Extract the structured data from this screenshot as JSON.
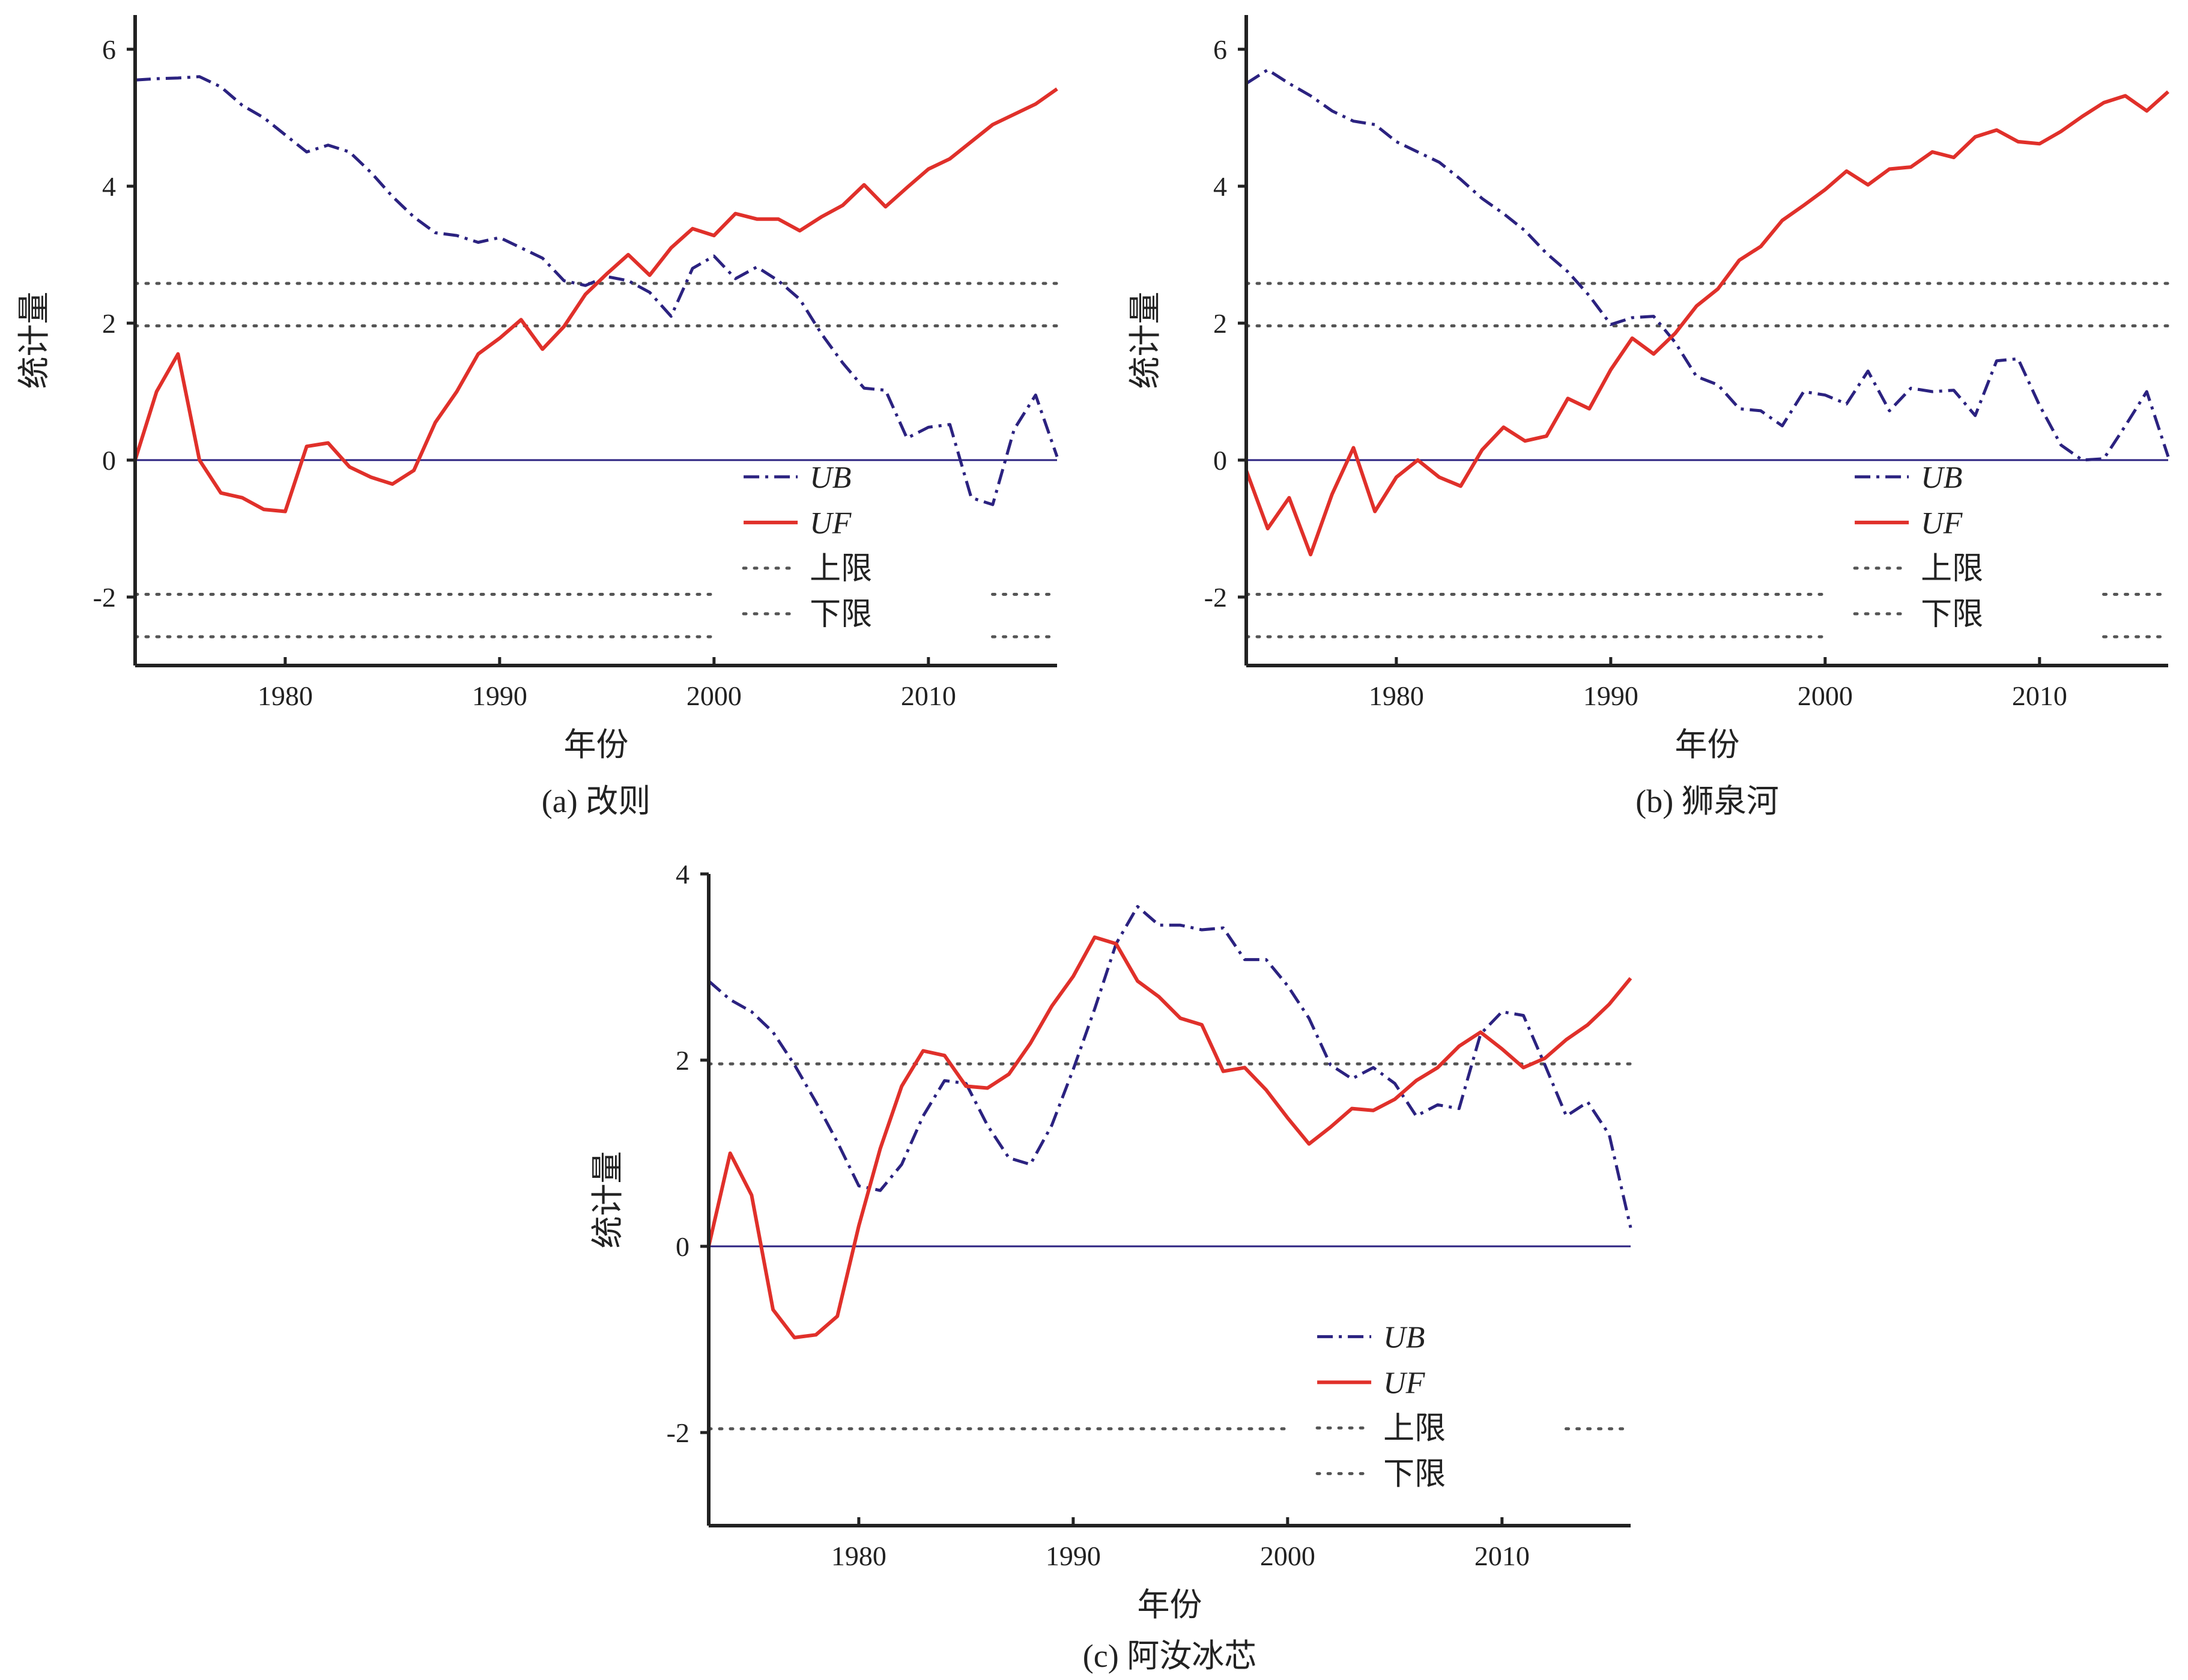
{
  "figure": {
    "colors": {
      "UB": "#2b2280",
      "UF": "#e0302a",
      "limit": "#555555",
      "zero": "#2b2280",
      "axis": "#222222"
    },
    "legend_labels": [
      "UB",
      "UF",
      "上限",
      "下限"
    ]
  },
  "chart_data": [
    {
      "type": "line",
      "caption": "(a) 改则",
      "xlabel": "年份",
      "ylabel": "统计量",
      "xlim": [
        1973,
        2016
      ],
      "ylim": [
        -3,
        6.5
      ],
      "xticks": [
        1980,
        1990,
        2000,
        2010
      ],
      "yticks": [
        -2,
        0,
        2,
        4,
        6
      ],
      "limits": [
        2.58,
        1.96,
        -1.96,
        -2.58
      ],
      "legend_position": "bottom-right",
      "x": [
        1973,
        1974,
        1975,
        1976,
        1977,
        1978,
        1979,
        1980,
        1981,
        1982,
        1983,
        1984,
        1985,
        1986,
        1987,
        1988,
        1989,
        1990,
        1991,
        1992,
        1993,
        1994,
        1995,
        1996,
        1997,
        1998,
        1999,
        2000,
        2001,
        2002,
        2003,
        2004,
        2005,
        2006,
        2007,
        2008,
        2009,
        2010,
        2011,
        2012,
        2013,
        2014,
        2015,
        2016
      ],
      "series": [
        {
          "name": "UB",
          "style": "dashdot",
          "values": [
            5.55,
            5.57,
            5.58,
            5.6,
            5.45,
            5.18,
            5.0,
            4.75,
            4.5,
            4.6,
            4.5,
            4.2,
            3.85,
            3.55,
            3.32,
            3.28,
            3.18,
            3.25,
            3.1,
            2.95,
            2.62,
            2.55,
            2.68,
            2.62,
            2.45,
            2.1,
            2.8,
            2.98,
            2.65,
            2.82,
            2.62,
            2.35,
            1.85,
            1.42,
            1.05,
            1.02,
            0.32,
            0.48,
            0.52,
            -0.55,
            -0.65,
            0.45,
            0.95,
            0.05
          ]
        },
        {
          "name": "UF",
          "style": "solid",
          "values": [
            0.0,
            1.0,
            1.55,
            0.0,
            -0.48,
            -0.55,
            -0.72,
            -0.75,
            0.2,
            0.25,
            -0.1,
            -0.25,
            -0.35,
            -0.15,
            0.55,
            1.0,
            1.55,
            1.78,
            2.05,
            1.62,
            1.95,
            2.42,
            2.72,
            3.0,
            2.7,
            3.1,
            3.38,
            3.28,
            3.6,
            3.52,
            3.52,
            3.35,
            3.55,
            3.72,
            4.02,
            3.7,
            3.98,
            4.25,
            4.4,
            4.65,
            4.9,
            5.05,
            5.2,
            5.42
          ]
        }
      ]
    },
    {
      "type": "line",
      "caption": "(b) 狮泉河",
      "xlabel": "年份",
      "ylabel": "统计量",
      "xlim": [
        1973,
        2016
      ],
      "ylim": [
        -3,
        6.5
      ],
      "xticks": [
        1980,
        1990,
        2000,
        2010
      ],
      "yticks": [
        -2,
        0,
        2,
        4,
        6
      ],
      "limits": [
        2.58,
        1.96,
        -1.96,
        -2.58
      ],
      "legend_position": "bottom-right",
      "x": [
        1973,
        1974,
        1975,
        1976,
        1977,
        1978,
        1979,
        1980,
        1981,
        1982,
        1983,
        1984,
        1985,
        1986,
        1987,
        1988,
        1989,
        1990,
        1991,
        1992,
        1993,
        1994,
        1995,
        1996,
        1997,
        1998,
        1999,
        2000,
        2001,
        2002,
        2003,
        2004,
        2005,
        2006,
        2007,
        2008,
        2009,
        2010,
        2011,
        2012,
        2013,
        2014,
        2015,
        2016
      ],
      "series": [
        {
          "name": "UB",
          "style": "dashdot",
          "values": [
            5.5,
            5.7,
            5.5,
            5.32,
            5.1,
            4.95,
            4.9,
            4.65,
            4.5,
            4.35,
            4.1,
            3.82,
            3.6,
            3.35,
            3.02,
            2.75,
            2.4,
            1.98,
            2.08,
            2.1,
            1.72,
            1.22,
            1.1,
            0.75,
            0.72,
            0.5,
            1.0,
            0.95,
            0.82,
            1.3,
            0.72,
            1.05,
            1.0,
            1.02,
            0.65,
            1.45,
            1.48,
            0.8,
            0.22,
            0.0,
            0.02,
            0.5,
            1.0,
            0.05
          ]
        },
        {
          "name": "UF",
          "style": "solid",
          "values": [
            -0.15,
            -1.0,
            -0.55,
            -1.38,
            -0.5,
            0.18,
            -0.75,
            -0.25,
            0.0,
            -0.25,
            -0.38,
            0.15,
            0.48,
            0.28,
            0.35,
            0.9,
            0.75,
            1.32,
            1.78,
            1.55,
            1.85,
            2.25,
            2.5,
            2.92,
            3.12,
            3.5,
            3.72,
            3.95,
            4.22,
            4.02,
            4.25,
            4.28,
            4.5,
            4.42,
            4.72,
            4.82,
            4.65,
            4.62,
            4.8,
            5.02,
            5.22,
            5.32,
            5.1,
            5.38
          ]
        }
      ]
    },
    {
      "type": "line",
      "caption": "(c) 阿汝冰芯",
      "xlabel": "年份",
      "ylabel": "统计量",
      "xlim": [
        1973,
        2016
      ],
      "ylim": [
        -3,
        4
      ],
      "xticks": [
        1980,
        1990,
        2000,
        2010
      ],
      "yticks": [
        -2,
        0,
        2,
        4
      ],
      "limits": [
        1.96,
        -1.96
      ],
      "legend_position": "bottom-right",
      "x": [
        1973,
        1974,
        1975,
        1976,
        1977,
        1978,
        1979,
        1980,
        1981,
        1982,
        1983,
        1984,
        1985,
        1986,
        1987,
        1988,
        1989,
        1990,
        1991,
        1992,
        1993,
        1994,
        1995,
        1996,
        1997,
        1998,
        1999,
        2000,
        2001,
        2002,
        2003,
        2004,
        2005,
        2006,
        2007,
        2008,
        2009,
        2010,
        2011,
        2012,
        2013,
        2014,
        2015,
        2016
      ],
      "series": [
        {
          "name": "UB",
          "style": "dashdot",
          "values": [
            2.85,
            2.65,
            2.52,
            2.3,
            1.95,
            1.55,
            1.12,
            0.65,
            0.6,
            0.88,
            1.4,
            1.78,
            1.75,
            1.3,
            0.95,
            0.88,
            1.3,
            1.9,
            2.55,
            3.25,
            3.65,
            3.45,
            3.45,
            3.4,
            3.42,
            3.08,
            3.08,
            2.8,
            2.45,
            1.95,
            1.8,
            1.92,
            1.75,
            1.4,
            1.52,
            1.48,
            2.28,
            2.52,
            2.48,
            1.95,
            1.4,
            1.55,
            1.2,
            0.2
          ]
        },
        {
          "name": "UF",
          "style": "solid",
          "values": [
            0.0,
            1.0,
            0.55,
            -0.68,
            -0.98,
            -0.95,
            -0.75,
            0.22,
            1.05,
            1.72,
            2.1,
            2.05,
            1.72,
            1.7,
            1.85,
            2.18,
            2.58,
            2.9,
            3.32,
            3.25,
            2.85,
            2.68,
            2.45,
            2.38,
            1.88,
            1.92,
            1.68,
            1.38,
            1.1,
            1.28,
            1.48,
            1.46,
            1.58,
            1.78,
            1.92,
            2.15,
            2.3,
            2.12,
            1.92,
            2.02,
            2.22,
            2.38,
            2.6,
            2.88
          ]
        }
      ]
    }
  ]
}
